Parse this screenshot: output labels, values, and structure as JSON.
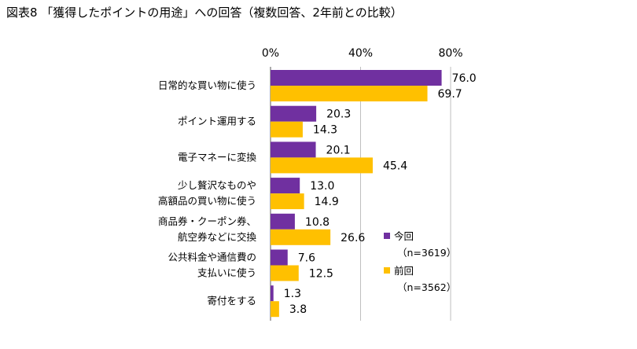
{
  "title": "図表8 「獲得したポイントの用途」への回答（複数回答、2年前との比較）",
  "chart_data": {
    "type": "bar",
    "orientation": "horizontal",
    "xlim": [
      0,
      80
    ],
    "ticks": [
      {
        "value": 0,
        "label": "0%"
      },
      {
        "value": 40,
        "label": "40%"
      },
      {
        "value": 80,
        "label": "80%"
      }
    ],
    "tick_position": "top",
    "grid": true,
    "categories": [
      [
        "日常的な買い物に使う"
      ],
      [
        "ポイント運用する"
      ],
      [
        "電子マネーに変換"
      ],
      [
        "少し贅沢なものや",
        "高額品の買い物に使う"
      ],
      [
        "商品券・クーポン券、",
        "航空券などに交換"
      ],
      [
        "公共料金や通信費の",
        "支払いに使う"
      ],
      [
        "寄付をする"
      ]
    ],
    "series": [
      {
        "name": "今回",
        "note": "（n=3619）",
        "color": "#7030A0",
        "values": [
          76.0,
          20.3,
          20.1,
          13.0,
          10.8,
          7.6,
          1.3
        ]
      },
      {
        "name": "前回",
        "note": "（n=3562）",
        "color": "#FFC000",
        "values": [
          69.7,
          14.3,
          45.4,
          14.9,
          26.6,
          12.5,
          3.8
        ]
      }
    ],
    "value_format": "one-decimal",
    "legend": "bottom-right"
  }
}
